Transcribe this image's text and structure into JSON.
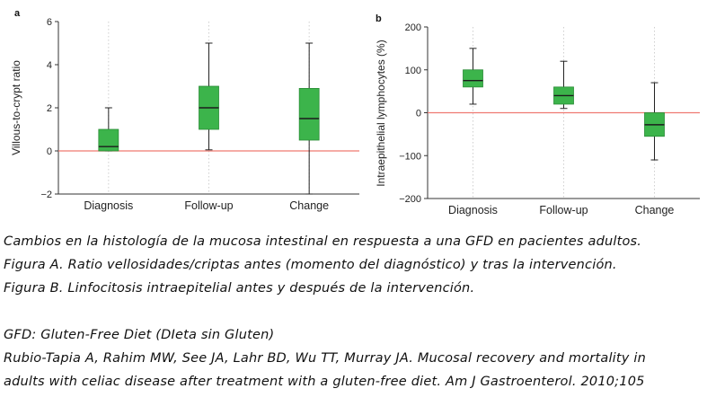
{
  "chart_data": [
    {
      "type": "box",
      "panel_label": "a",
      "ylabel": "Villous-to-crypt ratio",
      "categories": [
        "Diagnosis",
        "Follow-up",
        "Change"
      ],
      "ylim": [
        -2,
        6
      ],
      "yticks": [
        -2,
        0,
        2,
        4,
        6
      ],
      "ytick_labels": [
        "−2",
        "0",
        "2",
        "4",
        "6"
      ],
      "reference_line": 0,
      "grid": "vertical dotted",
      "boxes": [
        {
          "category": "Diagnosis",
          "min": 0,
          "q1": 0,
          "median": 0.2,
          "q3": 1.0,
          "max": 2.0
        },
        {
          "category": "Follow-up",
          "min": 0.05,
          "q1": 1.0,
          "median": 2.0,
          "q3": 3.0,
          "max": 5.0
        },
        {
          "category": "Change",
          "min": -2.0,
          "q1": 0.5,
          "median": 1.5,
          "q3": 2.9,
          "max": 5.0
        }
      ]
    },
    {
      "type": "box",
      "panel_label": "b",
      "ylabel": "Intraepithelial lymphocytes (%)",
      "categories": [
        "Diagnosis",
        "Follow-up",
        "Change"
      ],
      "ylim": [
        -200,
        200
      ],
      "yticks": [
        -200,
        -100,
        0,
        100,
        200
      ],
      "ytick_labels": [
        "−200",
        "−100",
        "0",
        "100",
        "200"
      ],
      "reference_line": 0,
      "grid": "vertical dotted",
      "boxes": [
        {
          "category": "Diagnosis",
          "min": 20,
          "q1": 60,
          "median": 75,
          "q3": 100,
          "max": 150
        },
        {
          "category": "Follow-up",
          "min": 10,
          "q1": 20,
          "median": 40,
          "q3": 60,
          "max": 120
        },
        {
          "category": "Change",
          "min": -110,
          "q1": -55,
          "median": -28,
          "q3": 0,
          "max": 70
        }
      ]
    }
  ],
  "colors": {
    "box_fill": "#3cb44b",
    "box_stroke": "#2a8c36",
    "reference_line": "#ef7a72",
    "axis": "#333333",
    "grid": "#cfcfcf"
  },
  "caption": {
    "lines": [
      "Cambios en la histología de la mucosa intestinal en respuesta a una GFD en pacientes adultos.",
      "Figura A. Ratio vellosidades/criptas antes (momento del diagnóstico) y tras la intervención.",
      "Figura B. Linfocitosis intraepitelial antes y después de la intervención."
    ],
    "gfd_note": "GFD: Gluten-Free Diet (DIeta sin Gluten)",
    "reference_lines": [
      "Rubio-Tapia A, Rahim MW, See JA, Lahr BD, Wu TT, Murray JA. Mucosal recovery and mortality in",
      "adults with celiac disease after treatment with a gluten-free diet. Am J Gastroenterol. 2010;105"
    ]
  }
}
